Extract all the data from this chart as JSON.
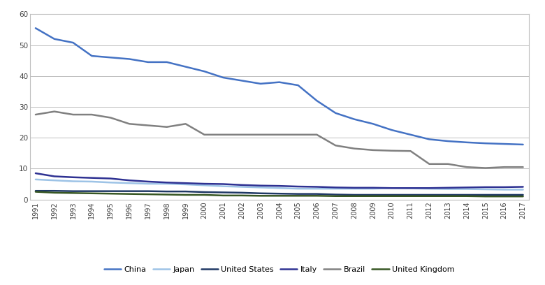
{
  "years": [
    1991,
    1992,
    1993,
    1994,
    1995,
    1996,
    1997,
    1998,
    1999,
    2000,
    2001,
    2002,
    2003,
    2004,
    2005,
    2006,
    2007,
    2008,
    2009,
    2010,
    2011,
    2012,
    2013,
    2014,
    2015,
    2016,
    2017
  ],
  "China": [
    55.5,
    52.0,
    50.8,
    46.5,
    46.0,
    45.5,
    44.5,
    44.5,
    43.0,
    41.5,
    39.5,
    38.5,
    37.5,
    38.0,
    37.0,
    32.0,
    28.0,
    26.0,
    24.5,
    22.5,
    21.0,
    19.5,
    18.9,
    18.5,
    18.2,
    18.0,
    17.8
  ],
  "Japan": [
    6.5,
    6.2,
    5.9,
    5.8,
    5.5,
    5.3,
    5.1,
    5.1,
    4.9,
    4.6,
    4.3,
    4.1,
    3.9,
    3.7,
    3.5,
    3.5,
    3.5,
    3.5,
    3.5,
    3.7,
    3.6,
    3.5,
    3.4,
    3.4,
    3.3,
    3.2,
    3.2
  ],
  "United_States": [
    2.8,
    2.8,
    2.7,
    2.7,
    2.7,
    2.7,
    2.7,
    2.6,
    2.6,
    2.4,
    2.3,
    2.2,
    2.0,
    1.9,
    1.8,
    1.8,
    1.6,
    1.5,
    1.5,
    1.5,
    1.5,
    1.5,
    1.5,
    1.5,
    1.5,
    1.5,
    1.5
  ],
  "Italy": [
    8.5,
    7.5,
    7.2,
    7.0,
    6.8,
    6.2,
    5.8,
    5.5,
    5.3,
    5.1,
    5.0,
    4.7,
    4.5,
    4.4,
    4.2,
    4.1,
    3.9,
    3.8,
    3.8,
    3.7,
    3.7,
    3.7,
    3.8,
    3.9,
    4.0,
    4.0,
    4.1
  ],
  "Brazil": [
    27.5,
    28.5,
    27.5,
    27.5,
    26.5,
    24.5,
    24.0,
    23.5,
    24.5,
    21.0,
    21.0,
    21.0,
    21.0,
    21.0,
    21.0,
    21.0,
    17.5,
    16.5,
    16.0,
    15.8,
    15.7,
    11.5,
    11.5,
    10.5,
    10.2,
    10.5,
    10.5
  ],
  "United_Kingdom": [
    2.5,
    2.2,
    2.1,
    2.0,
    1.9,
    1.8,
    1.7,
    1.6,
    1.5,
    1.5,
    1.3,
    1.3,
    1.2,
    1.2,
    1.2,
    1.2,
    1.1,
    1.1,
    1.1,
    1.1,
    1.1,
    1.1,
    1.1,
    1.1,
    1.0,
    1.0,
    1.0
  ],
  "colors": {
    "China": "#4472C4",
    "Japan": "#9DC3E6",
    "United_States": "#1F3864",
    "Italy": "#2E3192",
    "Brazil": "#808080",
    "United_Kingdom": "#375623"
  },
  "legend_labels": {
    "China": "China",
    "Japan": "Japan",
    "United_States": "United States",
    "Italy": "Italy",
    "Brazil": "Brazil",
    "United_Kingdom": "United Kingdom"
  },
  "ylim": [
    0,
    60
  ],
  "yticks": [
    0,
    10,
    20,
    30,
    40,
    50,
    60
  ],
  "bg_color": "#FFFFFF",
  "grid_color": "#BFBFBF",
  "border_color": "#BFBFBF"
}
